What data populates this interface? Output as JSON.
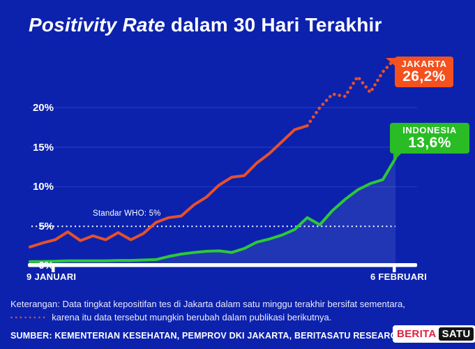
{
  "title": {
    "em": "Positivity Rate",
    "rest": " dalam 30 Hari Terakhir"
  },
  "chart_data": {
    "type": "line",
    "x_start_label": "9 JANUARI",
    "x_end_label": "6 FEBRUARI",
    "x_range_days": 30,
    "y_tick_labels": [
      "20%",
      "15%",
      "10%",
      "5%",
      "0%"
    ],
    "ylim": [
      0,
      27
    ],
    "gridlines": [
      10,
      15,
      20
    ],
    "who_line": {
      "label": "Standar WHO: 5%",
      "value": 5
    },
    "series": [
      {
        "name": "JAKARTA",
        "value_label": "26,2%",
        "color": "#e5512d",
        "callout_color": "#f4511e",
        "dotted_from_index": 22,
        "values": [
          2.4,
          2.9,
          3.3,
          4.3,
          3.2,
          3.8,
          3.3,
          4.2,
          3.3,
          4.1,
          5.5,
          6.1,
          6.3,
          7.7,
          8.7,
          10.2,
          11.2,
          11.4,
          13.0,
          14.2,
          15.7,
          17.2,
          17.7,
          20.0,
          21.7,
          21.4,
          23.9,
          21.9,
          24.5,
          26.2
        ]
      },
      {
        "name": "INDONESIA",
        "value_label": "13,6%",
        "color": "#2ec836",
        "callout_color": "#29bc24",
        "area_fill": true,
        "values": [
          0.55,
          0.55,
          0.6,
          0.65,
          0.65,
          0.65,
          0.65,
          0.7,
          0.7,
          0.75,
          0.8,
          1.2,
          1.5,
          1.7,
          1.85,
          1.9,
          1.7,
          2.2,
          3.0,
          3.4,
          3.9,
          4.6,
          6.1,
          5.2,
          7.0,
          8.4,
          9.6,
          10.4,
          10.9,
          13.6
        ]
      }
    ],
    "legend_position": "end-of-line callouts",
    "grid": "horizontal only"
  },
  "callouts": {
    "jakarta": {
      "name": "JAKARTA",
      "value": "26,2%"
    },
    "indonesia": {
      "name": "INDONESIA",
      "value": "13,6%"
    }
  },
  "notes": {
    "line1": "Keterangan: Data tingkat kepositifan tes di Jakarta dalam satu minggu terakhir bersifat sementara,",
    "legend_dots": "••••••••",
    "line2": "karena itu data tersebut mungkin berubah dalam publikasi berikutnya."
  },
  "source": "SUMBER: KEMENTERIAN KESEHATAN, PEMPROV DKI JAKARTA, BERITASATU RESEARCH",
  "logo": {
    "part1": "BERITA",
    "part2": "SATU"
  },
  "colors": {
    "background": "#0c22ad",
    "gridline": "#2336bb",
    "axis": "#ffffff",
    "who_dotted": "#ffffff",
    "area_fill": "rgba(226,233,255,0.10)",
    "jakarta_line": "#e5512d",
    "jakarta_box": "#f4511e",
    "indonesia_line": "#2ec836",
    "indonesia_box": "#29bc24",
    "note_text": "#eceafc",
    "note_dots": "#e85a3a",
    "logo_red": "#e11e3c",
    "logo_black": "#141414"
  }
}
